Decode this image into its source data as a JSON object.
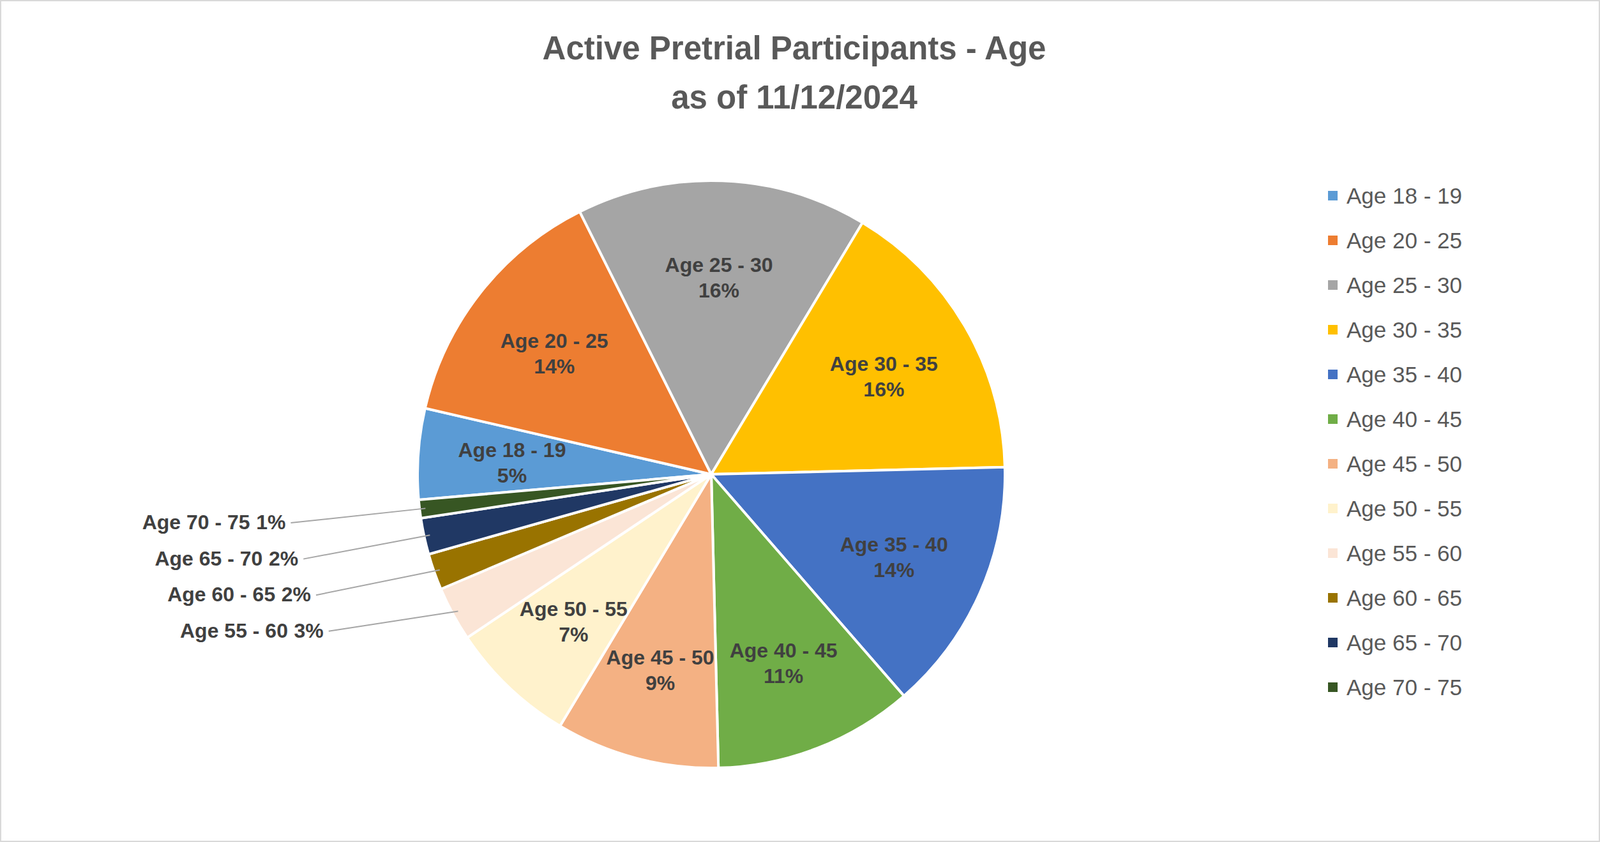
{
  "chart_data": {
    "type": "pie",
    "title": "Active Pretrial Participants - Age",
    "subtitle": "as of 11/12/2024",
    "categories": [
      "Age 18 - 19",
      "Age 20 - 25",
      "Age 25 - 30",
      "Age 30 - 35",
      "Age 35 - 40",
      "Age 40 - 45",
      "Age 45 - 50",
      "Age 50 - 55",
      "Age 55 - 60",
      "Age 60 - 65",
      "Age 65 - 70",
      "Age 70 - 75"
    ],
    "values": [
      5,
      14,
      16,
      16,
      14,
      11,
      9,
      7,
      3,
      2,
      2,
      1
    ],
    "value_labels": [
      "5%",
      "14%",
      "16%",
      "16%",
      "14%",
      "11%",
      "9%",
      "7%",
      "3%",
      "2%",
      "2%",
      "1%"
    ],
    "colors": [
      "#5b9bd5",
      "#ed7d31",
      "#a5a5a5",
      "#ffc000",
      "#4472c4",
      "#70ad47",
      "#f4b183",
      "#fff2cc",
      "#fbe5d6",
      "#997300",
      "#203864",
      "#375623"
    ],
    "data_labels": true,
    "legend": "right"
  }
}
